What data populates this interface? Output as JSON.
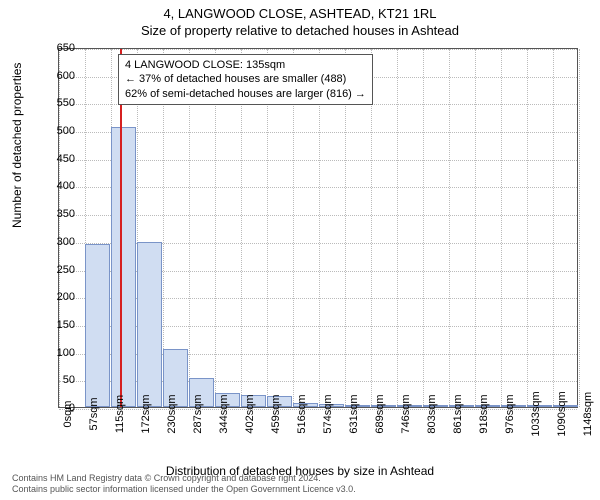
{
  "title_line1": "4, LANGWOOD CLOSE, ASHTEAD, KT21 1RL",
  "title_line2": "Size of property relative to detached houses in Ashtead",
  "ylabel": "Number of detached properties",
  "xlabel": "Distribution of detached houses by size in Ashtead",
  "chart": {
    "type": "histogram",
    "background_color": "#ffffff",
    "grid_color": "#bbbbbb",
    "border_color": "#555555",
    "bar_fill": "#d0ddf2",
    "bar_stroke": "#7a94c8",
    "ref_line_color": "#d62020",
    "ylim": [
      0,
      650
    ],
    "yticks": [
      0,
      50,
      100,
      150,
      200,
      250,
      300,
      350,
      400,
      450,
      500,
      550,
      600,
      650
    ],
    "xticks": [
      "0sqm",
      "57sqm",
      "115sqm",
      "172sqm",
      "230sqm",
      "287sqm",
      "344sqm",
      "402sqm",
      "459sqm",
      "516sqm",
      "574sqm",
      "631sqm",
      "689sqm",
      "746sqm",
      "803sqm",
      "861sqm",
      "918sqm",
      "976sqm",
      "1033sqm",
      "1090sqm",
      "1148sqm"
    ],
    "bar_values": [
      0,
      295,
      505,
      298,
      105,
      52,
      25,
      22,
      20,
      8,
      6,
      3,
      2,
      2,
      2,
      1,
      1,
      1,
      1,
      1
    ],
    "bar_count": 20,
    "reference_x": 135,
    "x_max": 1148
  },
  "annotation": {
    "line1": "4 LANGWOOD CLOSE: 135sqm",
    "line2": "← 37% of detached houses are smaller (488)",
    "line3": "62% of semi-detached houses are larger (816) →"
  },
  "footer_line1": "Contains HM Land Registry data © Crown copyright and database right 2024.",
  "footer_line2": "Contains public sector information licensed under the Open Government Licence v3.0.",
  "fontsize": {
    "title": 13,
    "label": 12,
    "tick": 11,
    "annot": 11,
    "footer": 9
  }
}
